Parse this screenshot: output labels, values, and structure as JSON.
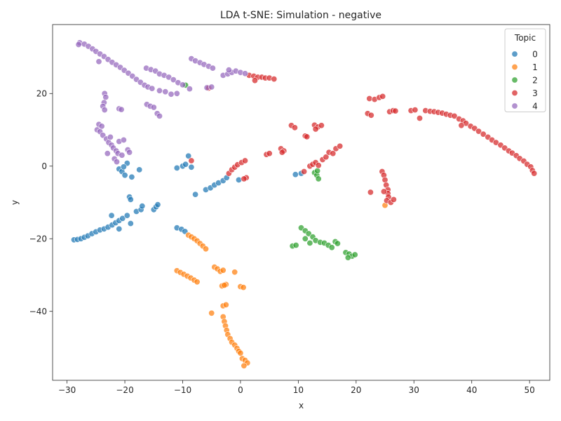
{
  "chart_data": {
    "type": "scatter",
    "title": "LDA t-SNE: Simulation - negative",
    "xlabel": "x",
    "ylabel": "y",
    "xlim": [
      -32.5,
      53.5
    ],
    "ylim": [
      -59,
      39
    ],
    "xticks": [
      -30,
      -20,
      -10,
      0,
      10,
      20,
      30,
      40,
      50
    ],
    "yticks": [
      -40,
      -20,
      0,
      20
    ],
    "grid": false,
    "legend": {
      "title": "Topic",
      "placement": "top-right"
    },
    "series": [
      {
        "name": "0",
        "color": "#1f77b4",
        "points": [
          [
            -28.8,
            -20.3
          ],
          [
            -28.2,
            -20.2
          ],
          [
            -27.6,
            -20.0
          ],
          [
            -27.0,
            -19.6
          ],
          [
            -26.4,
            -19.2
          ],
          [
            -25.7,
            -18.6
          ],
          [
            -25.0,
            -18.1
          ],
          [
            -24.3,
            -17.6
          ],
          [
            -23.6,
            -17.3
          ],
          [
            -22.9,
            -16.8
          ],
          [
            -22.2,
            -16.2
          ],
          [
            -21.6,
            -15.6
          ],
          [
            -21.0,
            -15.0
          ],
          [
            -20.4,
            -14.4
          ],
          [
            -19.6,
            -13.6
          ],
          [
            -19.0,
            -15.8
          ],
          [
            -22.3,
            -13.6
          ],
          [
            -21.0,
            -17.3
          ],
          [
            -18.0,
            -12.5
          ],
          [
            -17.2,
            -12.0
          ],
          [
            -17.0,
            -11.0
          ],
          [
            -15.0,
            -12.0
          ],
          [
            -14.6,
            -11.2
          ],
          [
            -14.3,
            -10.6
          ],
          [
            -19.2,
            -8.5
          ],
          [
            -19.0,
            -9.2
          ],
          [
            -21.0,
            -0.8
          ],
          [
            -20.5,
            -1.5
          ],
          [
            -20.0,
            -2.5
          ],
          [
            -19.6,
            0.8
          ],
          [
            -20.2,
            -0.2
          ],
          [
            -18.8,
            -3.0
          ],
          [
            -17.5,
            -1.0
          ],
          [
            -11.0,
            -0.5
          ],
          [
            -10.0,
            0.0
          ],
          [
            -9.5,
            0.5
          ],
          [
            -9.0,
            2.8
          ],
          [
            -8.5,
            -0.3
          ],
          [
            -7.8,
            -7.8
          ],
          [
            -6.0,
            -6.5
          ],
          [
            -5.2,
            -6.0
          ],
          [
            -4.5,
            -5.2
          ],
          [
            -3.8,
            -4.6
          ],
          [
            -3.0,
            -4.0
          ],
          [
            -2.4,
            -3.2
          ],
          [
            -0.3,
            -3.8
          ],
          [
            -11.0,
            -17.0
          ],
          [
            -10.2,
            -17.4
          ],
          [
            -9.6,
            -18.0
          ],
          [
            9.5,
            -2.3
          ],
          [
            10.5,
            -2.0
          ]
        ]
      },
      {
        "name": "1",
        "color": "#ff7f0e",
        "points": [
          [
            -9.0,
            -19.0
          ],
          [
            -8.5,
            -19.5
          ],
          [
            -8.0,
            -20.0
          ],
          [
            -7.5,
            -20.6
          ],
          [
            -7.0,
            -21.3
          ],
          [
            -6.5,
            -22.0
          ],
          [
            -6.0,
            -22.8
          ],
          [
            -11.0,
            -28.8
          ],
          [
            -10.4,
            -29.3
          ],
          [
            -9.8,
            -29.8
          ],
          [
            -9.2,
            -30.3
          ],
          [
            -8.6,
            -30.8
          ],
          [
            -8.0,
            -31.4
          ],
          [
            -7.5,
            -31.9
          ],
          [
            -4.5,
            -27.8
          ],
          [
            -4.0,
            -28.3
          ],
          [
            -3.5,
            -29.0
          ],
          [
            -3.0,
            -28.7
          ],
          [
            -1.0,
            -29.2
          ],
          [
            -3.2,
            -33.0
          ],
          [
            -2.5,
            -32.6
          ],
          [
            -2.8,
            -32.8
          ],
          [
            0.0,
            -33.2
          ],
          [
            0.5,
            -33.4
          ],
          [
            -3.0,
            -38.5
          ],
          [
            -2.5,
            -38.2
          ],
          [
            -5.0,
            -40.5
          ],
          [
            -3.0,
            -41.5
          ],
          [
            -2.8,
            -42.8
          ],
          [
            -2.6,
            -44.0
          ],
          [
            -2.4,
            -45.2
          ],
          [
            -2.2,
            -46.4
          ],
          [
            -1.8,
            -47.5
          ],
          [
            -1.5,
            -48.5
          ],
          [
            -1.0,
            -49.3
          ],
          [
            -0.6,
            -50.2
          ],
          [
            -0.3,
            -51.0
          ],
          [
            0.0,
            -51.5
          ],
          [
            0.3,
            -53.0
          ],
          [
            0.8,
            -53.5
          ],
          [
            1.2,
            -54.2
          ],
          [
            0.6,
            -55.0
          ],
          [
            25.0,
            -10.8
          ]
        ]
      },
      {
        "name": "2",
        "color": "#2ca02c",
        "points": [
          [
            -9.5,
            22.3
          ],
          [
            12.8,
            -1.8
          ],
          [
            13.2,
            -2.5
          ],
          [
            13.5,
            -3.5
          ],
          [
            13.3,
            -1.3
          ],
          [
            9.0,
            -22.0
          ],
          [
            9.6,
            -21.8
          ],
          [
            10.5,
            -17.0
          ],
          [
            11.2,
            -17.8
          ],
          [
            11.8,
            -18.6
          ],
          [
            12.5,
            -19.5
          ],
          [
            11.2,
            -20.0
          ],
          [
            12.0,
            -21.2
          ],
          [
            13.0,
            -20.5
          ],
          [
            13.8,
            -21.0
          ],
          [
            14.5,
            -21.2
          ],
          [
            15.2,
            -21.8
          ],
          [
            15.8,
            -22.4
          ],
          [
            16.4,
            -20.8
          ],
          [
            16.8,
            -21.3
          ],
          [
            18.2,
            -23.8
          ],
          [
            18.8,
            -24.2
          ],
          [
            19.3,
            -24.8
          ],
          [
            19.8,
            -24.4
          ],
          [
            18.6,
            -25.2
          ]
        ]
      },
      {
        "name": "3",
        "color": "#d62728",
        "points": [
          [
            -8.5,
            1.5
          ],
          [
            -5.5,
            21.5
          ],
          [
            1.5,
            25.0
          ],
          [
            2.3,
            24.8
          ],
          [
            3.0,
            24.5
          ],
          [
            3.7,
            24.5
          ],
          [
            4.3,
            24.3
          ],
          [
            5.0,
            24.3
          ],
          [
            5.8,
            24.0
          ],
          [
            2.5,
            23.6
          ],
          [
            -2.0,
            -2.0
          ],
          [
            -1.5,
            -1.0
          ],
          [
            -1.0,
            -0.3
          ],
          [
            -0.5,
            0.4
          ],
          [
            0.2,
            1.0
          ],
          [
            0.8,
            1.5
          ],
          [
            1.0,
            -3.2
          ],
          [
            0.6,
            -3.5
          ],
          [
            4.5,
            3.2
          ],
          [
            5.0,
            3.5
          ],
          [
            7.0,
            4.8
          ],
          [
            7.5,
            4.2
          ],
          [
            7.2,
            3.8
          ],
          [
            8.8,
            11.2
          ],
          [
            9.4,
            10.6
          ],
          [
            11.2,
            8.3
          ],
          [
            11.5,
            8.1
          ],
          [
            12.8,
            11.3
          ],
          [
            13.4,
            10.8
          ],
          [
            14.0,
            11.2
          ],
          [
            13.0,
            10.2
          ],
          [
            11.0,
            -1.5
          ],
          [
            12.0,
            0.0
          ],
          [
            12.5,
            0.5
          ],
          [
            13.0,
            1.0
          ],
          [
            13.5,
            0.2
          ],
          [
            14.2,
            1.8
          ],
          [
            14.8,
            2.5
          ],
          [
            15.3,
            3.8
          ],
          [
            16.5,
            4.8
          ],
          [
            17.2,
            5.5
          ],
          [
            16.0,
            3.5
          ],
          [
            22.0,
            14.5
          ],
          [
            22.6,
            14.0
          ],
          [
            22.3,
            18.6
          ],
          [
            23.2,
            18.4
          ],
          [
            24.0,
            18.9
          ],
          [
            24.6,
            19.2
          ],
          [
            25.8,
            15.0
          ],
          [
            26.4,
            15.3
          ],
          [
            26.8,
            15.2
          ],
          [
            22.5,
            -7.2
          ],
          [
            24.5,
            -1.5
          ],
          [
            24.8,
            -2.5
          ],
          [
            25.0,
            -3.8
          ],
          [
            25.2,
            -5.2
          ],
          [
            25.5,
            -6.5
          ],
          [
            25.5,
            -7.5
          ],
          [
            25.6,
            -8.5
          ],
          [
            25.3,
            -9.5
          ],
          [
            26.0,
            -10.0
          ],
          [
            26.5,
            -9.2
          ],
          [
            24.8,
            -7.0
          ],
          [
            29.5,
            15.3
          ],
          [
            30.2,
            15.5
          ],
          [
            31.0,
            13.2
          ],
          [
            32.0,
            15.3
          ],
          [
            32.8,
            15.1
          ],
          [
            33.5,
            15.0
          ],
          [
            34.2,
            14.8
          ],
          [
            34.9,
            14.6
          ],
          [
            35.6,
            14.3
          ],
          [
            36.3,
            14.0
          ],
          [
            37.0,
            13.8
          ],
          [
            37.8,
            13.0
          ],
          [
            38.5,
            12.5
          ],
          [
            39.0,
            11.8
          ],
          [
            38.2,
            11.2
          ],
          [
            39.8,
            11.0
          ],
          [
            40.5,
            10.4
          ],
          [
            41.2,
            9.6
          ],
          [
            42.0,
            8.8
          ],
          [
            42.8,
            8.0
          ],
          [
            43.5,
            7.2
          ],
          [
            44.2,
            6.5
          ],
          [
            45.0,
            5.8
          ],
          [
            45.7,
            5.0
          ],
          [
            46.4,
            4.2
          ],
          [
            47.0,
            3.6
          ],
          [
            47.7,
            2.9
          ],
          [
            48.3,
            2.1
          ],
          [
            49.0,
            1.4
          ],
          [
            49.6,
            0.5
          ],
          [
            50.2,
            -0.2
          ],
          [
            50.5,
            -1.2
          ],
          [
            50.8,
            -2.0
          ]
        ]
      },
      {
        "name": "4",
        "color": "#9467bd",
        "points": [
          [
            -27.8,
            34.0
          ],
          [
            -27.0,
            33.6
          ],
          [
            -26.3,
            33.0
          ],
          [
            -25.6,
            32.3
          ],
          [
            -25.0,
            31.6
          ],
          [
            -24.3,
            30.9
          ],
          [
            -23.6,
            30.2
          ],
          [
            -22.9,
            29.4
          ],
          [
            -22.2,
            28.6
          ],
          [
            -21.5,
            27.9
          ],
          [
            -20.8,
            27.2
          ],
          [
            -20.1,
            26.4
          ],
          [
            -19.4,
            25.6
          ],
          [
            -18.7,
            24.8
          ],
          [
            -18.0,
            23.9
          ],
          [
            -17.3,
            23.1
          ],
          [
            -16.6,
            22.3
          ],
          [
            -16.0,
            21.8
          ],
          [
            -15.3,
            21.4
          ],
          [
            -24.5,
            28.8
          ],
          [
            -28.0,
            33.5
          ],
          [
            -16.3,
            27.0
          ],
          [
            -15.5,
            26.6
          ],
          [
            -14.7,
            26.2
          ],
          [
            -14.0,
            25.4
          ],
          [
            -13.2,
            25.0
          ],
          [
            -12.4,
            24.5
          ],
          [
            -11.6,
            23.8
          ],
          [
            -10.8,
            23.0
          ],
          [
            -10.0,
            22.4
          ],
          [
            -8.8,
            21.3
          ],
          [
            -12.0,
            19.8
          ],
          [
            -13.0,
            20.5
          ],
          [
            -14.0,
            20.8
          ],
          [
            -11.0,
            20.0
          ],
          [
            -8.5,
            29.6
          ],
          [
            -7.8,
            29.0
          ],
          [
            -7.0,
            28.5
          ],
          [
            -6.3,
            28.0
          ],
          [
            -5.5,
            27.5
          ],
          [
            -4.8,
            27.0
          ],
          [
            -5.8,
            21.6
          ],
          [
            -5.0,
            21.8
          ],
          [
            -3.0,
            25.0
          ],
          [
            -2.2,
            25.4
          ],
          [
            -1.5,
            25.8
          ],
          [
            -0.8,
            26.2
          ],
          [
            0.0,
            25.8
          ],
          [
            0.8,
            25.5
          ],
          [
            -2.0,
            26.5
          ],
          [
            -23.5,
            20.0
          ],
          [
            -23.3,
            19.0
          ],
          [
            -23.6,
            17.5
          ],
          [
            -23.8,
            16.5
          ],
          [
            -23.5,
            15.5
          ],
          [
            -21.0,
            15.8
          ],
          [
            -20.6,
            15.6
          ],
          [
            -24.5,
            11.5
          ],
          [
            -24.0,
            11.0
          ],
          [
            -24.8,
            10.0
          ],
          [
            -24.3,
            9.5
          ],
          [
            -23.8,
            8.5
          ],
          [
            -23.2,
            7.5
          ],
          [
            -22.8,
            6.5
          ],
          [
            -22.3,
            5.8
          ],
          [
            -22.0,
            5.0
          ],
          [
            -21.5,
            4.2
          ],
          [
            -21.2,
            3.5
          ],
          [
            -20.5,
            3.0
          ],
          [
            -19.5,
            4.5
          ],
          [
            -19.2,
            3.8
          ],
          [
            -21.0,
            6.8
          ],
          [
            -20.2,
            7.2
          ],
          [
            -22.5,
            8.0
          ],
          [
            -23.0,
            3.5
          ],
          [
            -21.8,
            2.0
          ],
          [
            -21.4,
            1.2
          ],
          [
            -16.2,
            17.0
          ],
          [
            -15.6,
            16.5
          ],
          [
            -15.0,
            16.2
          ],
          [
            -14.4,
            14.5
          ],
          [
            -14.0,
            13.8
          ]
        ]
      }
    ]
  }
}
